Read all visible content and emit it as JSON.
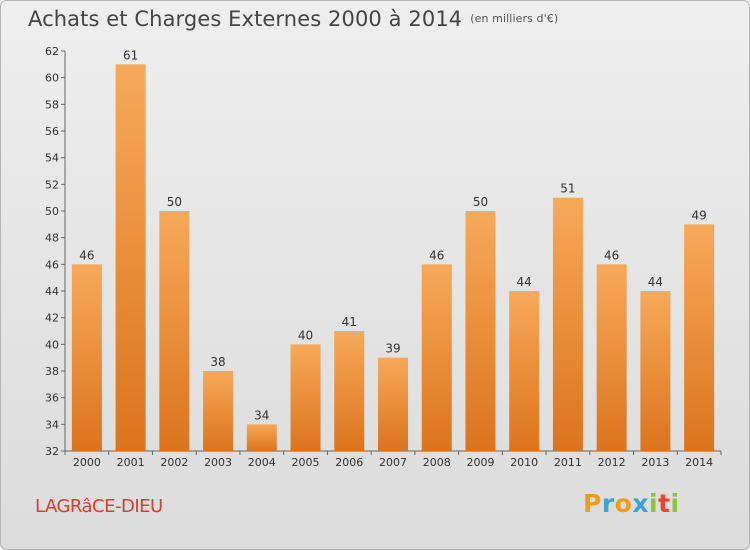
{
  "header": {
    "title": "Achats et Charges Externes 2000 à 2014",
    "unit": "(en milliers d'€)"
  },
  "footer": {
    "commune": "LAGRâCE-DIEU",
    "logo_letters": [
      "P",
      "r",
      "o",
      "x",
      "i",
      "t",
      "i"
    ],
    "logo_colors": [
      "#f29b1d",
      "#3aa3d8",
      "#f29b1d",
      "#3aa3d8",
      "#8ac43f",
      "#e8452c",
      "#8ac43f"
    ]
  },
  "colors": {
    "bar_light": "#f7a95a",
    "bar_dark": "#dc741d",
    "axis": "#555555",
    "grid": "#cccccc",
    "commune": "#d6402e"
  },
  "chart_data": {
    "type": "bar",
    "title": "Achats et Charges Externes 2000 à 2014",
    "subtitle": "(en milliers d'€)",
    "categories": [
      "2000",
      "2001",
      "2002",
      "2003",
      "2004",
      "2005",
      "2006",
      "2007",
      "2008",
      "2009",
      "2010",
      "2011",
      "2012",
      "2013",
      "2014"
    ],
    "values": [
      46,
      61,
      50,
      38,
      34,
      40,
      41,
      39,
      46,
      50,
      44,
      51,
      46,
      44,
      49
    ],
    "ylim": [
      32,
      62
    ],
    "yticks": [
      32,
      34,
      36,
      38,
      40,
      42,
      44,
      46,
      48,
      50,
      52,
      54,
      56,
      58,
      60,
      62
    ],
    "xlabel": "",
    "ylabel": "",
    "grid": false,
    "data_labels": true
  }
}
